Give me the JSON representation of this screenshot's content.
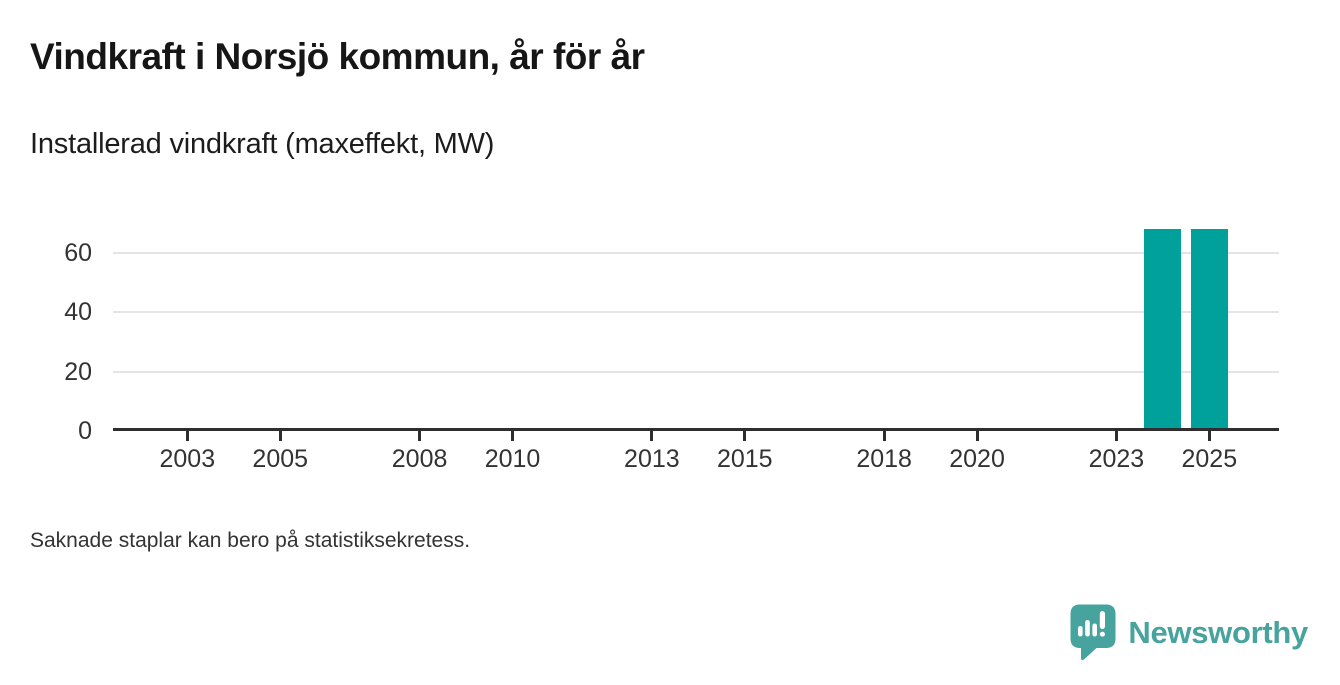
{
  "header": {
    "title": "Vindkraft i Norsjö kommun, år för år",
    "subtitle": "Installerad vindkraft (maxeffekt, MW)"
  },
  "chart_data": {
    "type": "bar",
    "title": "Vindkraft i Norsjö kommun, år för år",
    "subtitle": "Installerad vindkraft (maxeffekt, MW)",
    "xlabel": "",
    "ylabel": "",
    "unit": "MW",
    "x_range": [
      2002,
      2025
    ],
    "bars": [
      {
        "year": 2024,
        "value": 68
      },
      {
        "year": 2025,
        "value": 68
      }
    ],
    "xticks": [
      2003,
      2005,
      2008,
      2010,
      2013,
      2015,
      2018,
      2020,
      2023,
      2025
    ],
    "yticks": [
      0,
      20,
      40,
      60
    ],
    "xlim": [
      2001.4,
      2026.5
    ],
    "ylim": [
      0,
      74.8
    ],
    "grid": true,
    "legend_position": "none",
    "bar_color": "#00a19a"
  },
  "footer": {
    "note": "Saknade staplar kan bero på statistiksekretess."
  },
  "branding": {
    "logo_label": "Newsworthy",
    "brand_color": "#46a39d"
  },
  "colors": {
    "axis": "#2e2e2e",
    "grid": "#e4e4e4",
    "tick_text": "#333333",
    "title_text": "#161616"
  }
}
